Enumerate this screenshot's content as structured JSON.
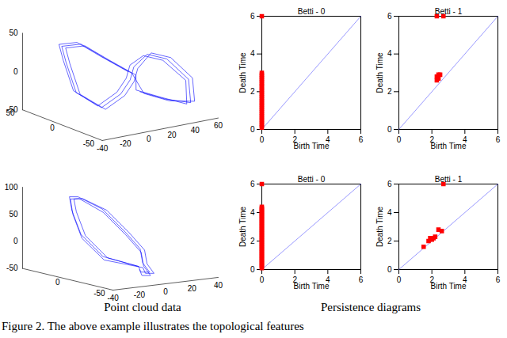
{
  "chart_data": [
    {
      "type": "line3d",
      "color": "#0000ff",
      "xlim": [
        -50,
        50
      ],
      "xticks": [
        -50,
        0,
        50
      ],
      "ylim": [
        -40,
        60
      ],
      "yticks": [
        -40,
        -20,
        0,
        20,
        40,
        60
      ],
      "zlim": [
        -50,
        50
      ],
      "zticks": [
        -50,
        0,
        50
      ],
      "x": [
        -10,
        -20,
        -30,
        -20,
        0,
        10,
        5,
        -5,
        -15,
        -20,
        -10,
        10,
        30,
        35,
        20,
        0,
        -12,
        -22,
        -32,
        -22,
        -2,
        8,
        3,
        -7,
        -17,
        -22,
        -12,
        8,
        28,
        33,
        18,
        -2,
        -8,
        -18,
        -28,
        -18,
        2,
        12,
        7,
        -3,
        -13,
        -18,
        -8,
        12,
        32,
        37,
        22,
        2
      ],
      "y": [
        20,
        35,
        50,
        55,
        50,
        40,
        25,
        15,
        0,
        -20,
        -35,
        -30,
        -20,
        0,
        10,
        20,
        22,
        37,
        52,
        57,
        52,
        42,
        27,
        17,
        2,
        -18,
        -33,
        -28,
        -18,
        2,
        12,
        22,
        18,
        33,
        48,
        54,
        48,
        38,
        23,
        13,
        -2,
        -22,
        -36,
        -31,
        -21,
        -2,
        8,
        18
      ],
      "z": [
        -20,
        -30,
        -35,
        -10,
        10,
        15,
        5,
        -5,
        -15,
        -25,
        -5,
        25,
        35,
        30,
        15,
        0,
        -22,
        -32,
        -33,
        -8,
        12,
        17,
        3,
        -7,
        -17,
        -27,
        -7,
        23,
        33,
        28,
        13,
        -2,
        -18,
        -28,
        -37,
        -12,
        8,
        13,
        7,
        -3,
        -13,
        -23,
        -3,
        27,
        37,
        32,
        17,
        2
      ]
    },
    {
      "type": "scatter",
      "title": "Betti - 0",
      "xlabel": "Birth Time",
      "ylabel": "Death Time",
      "xlim": [
        0,
        6
      ],
      "ylim": [
        0,
        6
      ],
      "xticks": [
        0,
        2,
        4,
        6
      ],
      "yticks": [
        0,
        2,
        4,
        6
      ],
      "color": "#ff0000",
      "marker": "square",
      "x": [
        0,
        0,
        0,
        0,
        0,
        0,
        0,
        0,
        0,
        0,
        0,
        0,
        0,
        0,
        0,
        0,
        0,
        0,
        0,
        0,
        0,
        0,
        0,
        0,
        0,
        0,
        0,
        0,
        0,
        0,
        0
      ],
      "y": [
        0.1,
        0.2,
        0.3,
        0.4,
        0.5,
        0.6,
        0.7,
        0.8,
        0.9,
        1.0,
        1.1,
        1.2,
        1.3,
        1.4,
        1.5,
        1.6,
        1.7,
        1.8,
        1.9,
        2.0,
        2.1,
        2.2,
        2.3,
        2.4,
        2.5,
        2.6,
        2.7,
        2.8,
        2.9,
        3.0,
        6
      ]
    },
    {
      "type": "scatter",
      "title": "Betti - 1",
      "xlabel": "Birth Time",
      "ylabel": "Death Time",
      "xlim": [
        0,
        6
      ],
      "ylim": [
        0,
        6
      ],
      "xticks": [
        0,
        2,
        4,
        6
      ],
      "yticks": [
        0,
        2,
        4,
        6
      ],
      "color": "#ff0000",
      "marker": "square",
      "x": [
        2.3,
        2.7,
        2.3,
        2.3,
        2.4,
        2.5,
        2.4
      ],
      "y": [
        6,
        6,
        2.6,
        2.8,
        2.9,
        2.9,
        2.7
      ]
    },
    {
      "type": "line3d",
      "color": "#0000ff",
      "xlim": [
        -50,
        50
      ],
      "xticks": [
        -50,
        0
      ],
      "ylim": [
        -40,
        40
      ],
      "yticks": [
        -40,
        -20,
        0,
        20,
        40
      ],
      "zlim": [
        -50,
        100
      ],
      "zticks": [
        -50,
        0,
        50,
        100
      ],
      "x": [
        -20,
        -10,
        0,
        10,
        20,
        25,
        20,
        10,
        0,
        -10,
        -25,
        -30,
        -20,
        -12,
        -2,
        8,
        18,
        23,
        18,
        8,
        -2,
        -12,
        -27,
        -32,
        -22,
        -14,
        -4,
        6,
        16,
        21,
        16,
        6,
        -4,
        -14,
        -29,
        -34,
        -24
      ],
      "y": [
        0,
        -20,
        -30,
        -30,
        -25,
        -15,
        0,
        10,
        15,
        10,
        5,
        -5,
        0,
        -18,
        -28,
        -28,
        -23,
        -13,
        2,
        12,
        17,
        12,
        7,
        -3,
        2,
        -22,
        -32,
        -32,
        -27,
        -17,
        -2,
        8,
        13,
        8,
        3,
        -7,
        -2
      ],
      "z": [
        -30,
        -10,
        30,
        70,
        90,
        85,
        60,
        20,
        -10,
        -30,
        -40,
        -35,
        -30,
        -12,
        28,
        68,
        86,
        82,
        58,
        18,
        -12,
        -32,
        -42,
        -37,
        -32,
        -14,
        25,
        65,
        88,
        84,
        56,
        16,
        -14,
        -34,
        -44,
        -39,
        -34
      ]
    },
    {
      "type": "scatter",
      "title": "Betti - 0",
      "xlabel": "Birth Time",
      "ylabel": "Death Time",
      "xlim": [
        0,
        6
      ],
      "ylim": [
        0,
        6
      ],
      "xticks": [
        0,
        2,
        4,
        6
      ],
      "yticks": [
        0,
        2,
        4,
        6
      ],
      "color": "#ff0000",
      "marker": "square",
      "x": [
        0,
        0,
        0,
        0,
        0,
        0,
        0,
        0,
        0,
        0,
        0,
        0,
        0,
        0,
        0,
        0,
        0,
        0,
        0,
        0,
        0,
        0,
        0,
        0,
        0,
        0,
        0,
        0,
        0,
        0,
        0,
        0,
        0,
        0,
        0,
        0,
        0,
        0,
        0,
        0,
        0,
        0,
        0,
        0,
        0
      ],
      "y": [
        0.1,
        0.2,
        0.3,
        0.4,
        0.5,
        0.6,
        0.7,
        0.8,
        0.9,
        1.0,
        1.1,
        1.2,
        1.3,
        1.4,
        1.5,
        1.6,
        1.7,
        1.8,
        1.9,
        2.0,
        2.1,
        2.2,
        2.3,
        2.4,
        2.5,
        2.6,
        2.7,
        2.8,
        2.9,
        3.0,
        3.1,
        3.2,
        3.3,
        3.4,
        3.5,
        3.6,
        3.7,
        3.8,
        3.9,
        4.0,
        4.1,
        4.2,
        4.3,
        4.4,
        6
      ]
    },
    {
      "type": "scatter",
      "title": "Betti - 1",
      "xlabel": "Birth Time",
      "ylabel": "Death Time",
      "xlim": [
        0,
        6
      ],
      "ylim": [
        0,
        6
      ],
      "xticks": [
        0,
        2,
        4,
        6
      ],
      "yticks": [
        0,
        2,
        4,
        6
      ],
      "color": "#ff0000",
      "marker": "square",
      "x": [
        2.7,
        1.5,
        1.8,
        1.9,
        2.0,
        2.1,
        2.2,
        2.4,
        2.6
      ],
      "y": [
        6,
        1.6,
        2.0,
        2.2,
        2.1,
        2.2,
        2.3,
        2.8,
        2.7
      ]
    }
  ],
  "captions": [
    "Point cloud data",
    "Persistence diagrams"
  ],
  "figure_caption": "Figure 2. The above example illustrates the topological features"
}
